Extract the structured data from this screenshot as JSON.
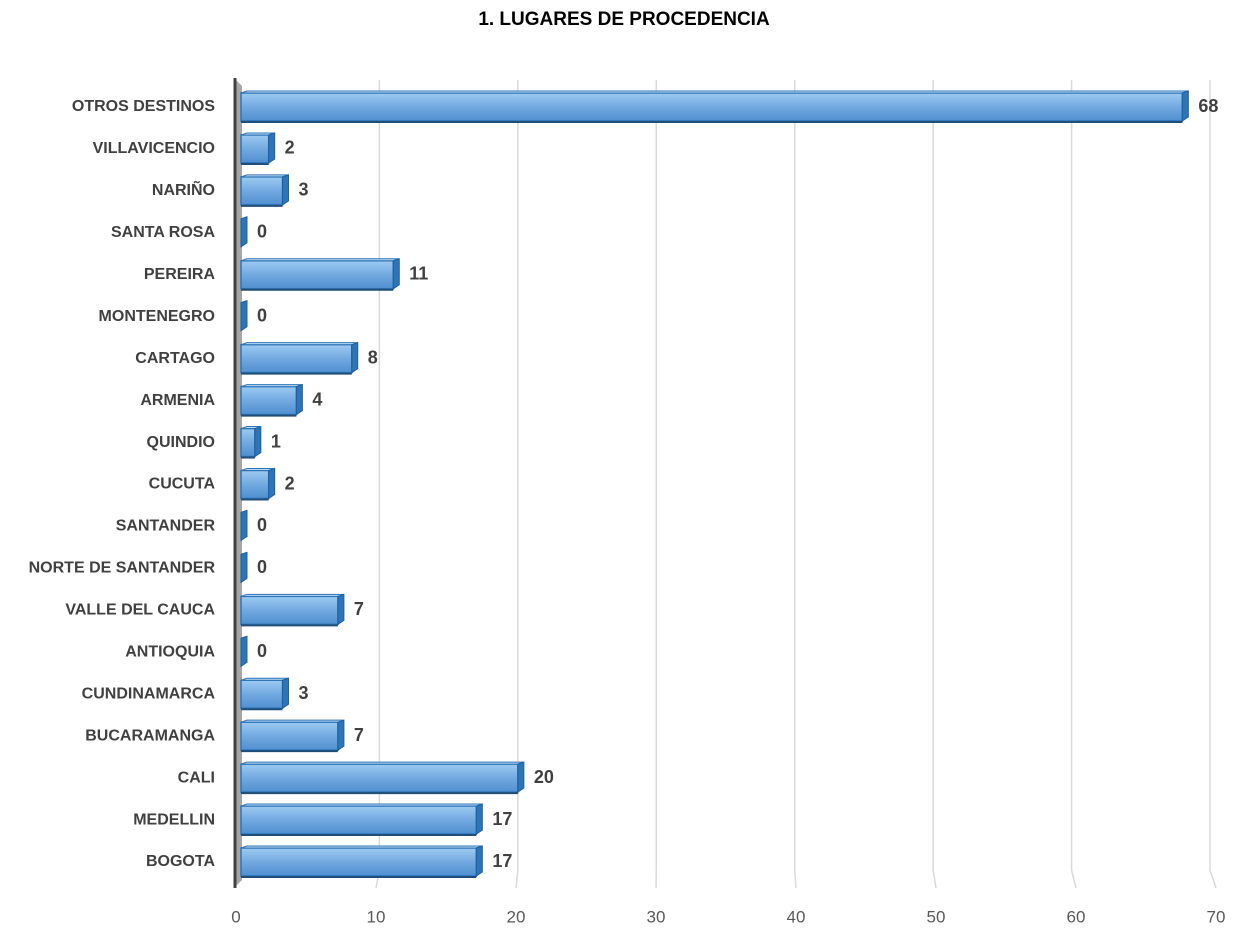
{
  "chart_data": {
    "type": "bar",
    "orientation": "horizontal",
    "title": "1. LUGARES DE PROCEDENCIA",
    "categories": [
      "OTROS DESTINOS",
      "VILLAVICENCIO",
      "NARIÑO",
      "SANTA ROSA",
      "PEREIRA",
      "MONTENEGRO",
      "CARTAGO",
      "ARMENIA",
      "QUINDIO",
      "CUCUTA",
      "SANTANDER",
      "NORTE DE SANTANDER",
      "VALLE DEL CAUCA",
      "ANTIOQUIA",
      "CUNDINAMARCA",
      "BUCARAMANGA",
      "CALI",
      "MEDELLIN",
      "BOGOTA"
    ],
    "values": [
      68,
      2,
      3,
      0,
      11,
      0,
      8,
      4,
      1,
      2,
      0,
      0,
      7,
      0,
      3,
      7,
      20,
      17,
      17
    ],
    "color": "#5b9bd5",
    "xlim": [
      0,
      70
    ],
    "xticks": [
      0,
      10,
      20,
      30,
      40,
      50,
      60,
      70
    ],
    "grid": true
  }
}
